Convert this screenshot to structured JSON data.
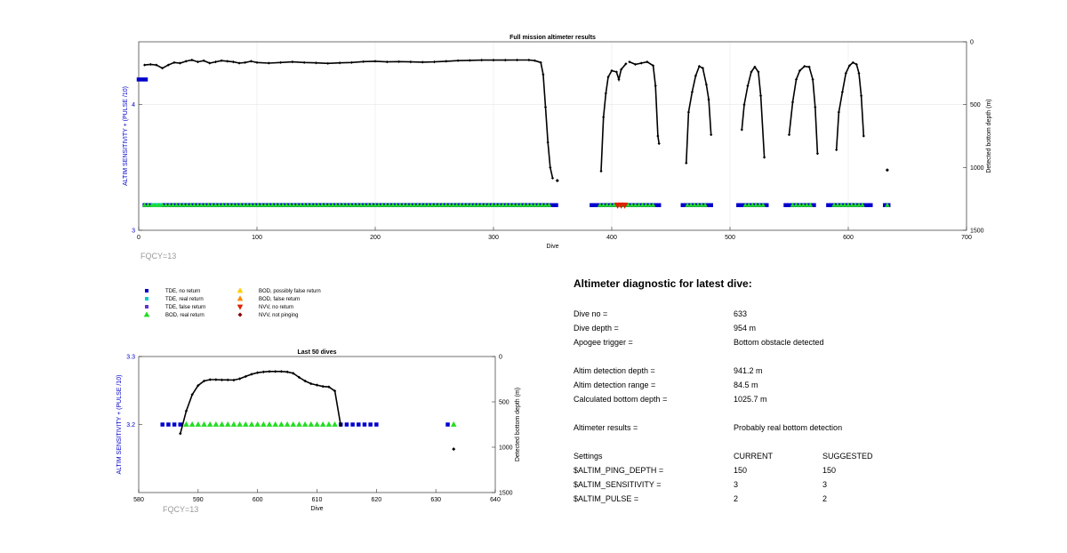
{
  "colors": {
    "tde_no_return": "#0000cc",
    "tde_real_return": "#00cccc",
    "tde_false_return": "#6633cc",
    "bod_real_return": "#22dd22",
    "bod_possibly_false": "#ffcc00",
    "bod_false_return": "#ff8800",
    "nvv_no_return": "#dd2200",
    "nvv_not_pinging": "#880000",
    "depth_line": "#000000",
    "left_axis_label": "#0000cc",
    "fqcy_text": "#999999"
  },
  "chart_data": [
    {
      "type": "scatter",
      "title": "Full mission altimeter results",
      "xlabel": "Dive",
      "ylabel_left": "ALTIM SENSITIVITY + (PULSE /10)",
      "ylabel_right": "Detected bottom depth (m)",
      "xlim": [
        0,
        700
      ],
      "ylim_left": [
        3,
        4.5
      ],
      "ylim_right": [
        0,
        1500
      ],
      "right_axis_reversed": true,
      "x_ticks": [
        "0",
        "100",
        "200",
        "300",
        "400",
        "500",
        "600",
        "700"
      ],
      "y_left_ticks": [
        "3",
        "4"
      ],
      "y_right_ticks": [
        "0",
        "500",
        "1000",
        "1500"
      ],
      "annotation": "FQCY=13",
      "markers": [
        {
          "type": "tde_no_return",
          "x0": 0,
          "x1": 6,
          "y": 4.2
        },
        {
          "type": "tde_no_return",
          "x0": 5,
          "x1": 349,
          "y": 3.2
        },
        {
          "type": "bod_real_return",
          "x0": 5,
          "x1": 347,
          "y": 3.2
        },
        {
          "type": "tde_real_return",
          "x0": 12,
          "x1": 20,
          "y": 3.2
        },
        {
          "type": "tde_no_return",
          "x0": 350,
          "x1": 353,
          "y": 3.2
        },
        {
          "type": "tde_no_return",
          "x0": 383,
          "x1": 440,
          "y": 3.2
        },
        {
          "type": "bod_real_return",
          "x0": 390,
          "x1": 435,
          "y": 3.2
        },
        {
          "type": "nvv_no_return",
          "x0": 405,
          "x1": 412,
          "y": 3.2
        },
        {
          "type": "tde_no_return",
          "x0": 460,
          "x1": 486,
          "y": 3.2
        },
        {
          "type": "bod_real_return",
          "x0": 464,
          "x1": 480,
          "y": 3.2
        },
        {
          "type": "tde_no_return",
          "x0": 507,
          "x1": 532,
          "y": 3.2
        },
        {
          "type": "bod_real_return",
          "x0": 513,
          "x1": 528,
          "y": 3.2
        },
        {
          "type": "tde_no_return",
          "x0": 547,
          "x1": 572,
          "y": 3.2
        },
        {
          "type": "bod_real_return",
          "x0": 553,
          "x1": 568,
          "y": 3.2
        },
        {
          "type": "tde_no_return",
          "x0": 583,
          "x1": 621,
          "y": 3.2
        },
        {
          "type": "bod_real_return",
          "x0": 588,
          "x1": 613,
          "y": 3.2
        },
        {
          "type": "tde_no_return",
          "x0": 631,
          "x1": 634,
          "y": 3.2
        },
        {
          "type": "bod_real_return",
          "x0": 633,
          "x1": 633,
          "y": 3.2
        }
      ],
      "depth_segments": [
        [
          [
            5,
            185
          ],
          [
            10,
            180
          ],
          [
            15,
            185
          ],
          [
            20,
            210
          ],
          [
            25,
            185
          ],
          [
            30,
            165
          ],
          [
            35,
            170
          ],
          [
            40,
            155
          ],
          [
            45,
            145
          ],
          [
            50,
            160
          ],
          [
            55,
            150
          ],
          [
            60,
            170
          ],
          [
            65,
            160
          ],
          [
            70,
            150
          ],
          [
            75,
            155
          ],
          [
            80,
            160
          ],
          [
            85,
            170
          ],
          [
            90,
            165
          ],
          [
            95,
            155
          ],
          [
            100,
            165
          ],
          [
            110,
            170
          ],
          [
            120,
            165
          ],
          [
            130,
            160
          ],
          [
            140,
            165
          ],
          [
            150,
            168
          ],
          [
            160,
            172
          ],
          [
            170,
            168
          ],
          [
            180,
            165
          ],
          [
            190,
            158
          ],
          [
            200,
            155
          ],
          [
            210,
            160
          ],
          [
            220,
            158
          ],
          [
            230,
            160
          ],
          [
            240,
            162
          ],
          [
            250,
            160
          ],
          [
            260,
            155
          ],
          [
            270,
            150
          ],
          [
            280,
            148
          ],
          [
            290,
            146
          ],
          [
            300,
            146
          ],
          [
            310,
            146
          ],
          [
            320,
            145
          ],
          [
            330,
            145
          ],
          [
            335,
            150
          ],
          [
            340,
            165
          ],
          [
            342,
            260
          ],
          [
            344,
            520
          ],
          [
            346,
            800
          ],
          [
            348,
            1000
          ],
          [
            350,
            1085
          ]
        ],
        [
          [
            391,
            1030
          ],
          [
            393,
            600
          ],
          [
            395,
            410
          ],
          [
            397,
            280
          ],
          [
            400,
            230
          ],
          [
            404,
            240
          ],
          [
            406,
            300
          ],
          [
            408,
            220
          ],
          [
            412,
            175
          ]
        ],
        [
          [
            415,
            160
          ],
          [
            420,
            180
          ],
          [
            425,
            170
          ],
          [
            430,
            160
          ],
          [
            435,
            190
          ],
          [
            437,
            350
          ],
          [
            439,
            750
          ],
          [
            440,
            810
          ]
        ],
        [
          [
            463,
            965
          ],
          [
            465,
            560
          ],
          [
            468,
            400
          ],
          [
            471,
            270
          ],
          [
            474,
            195
          ],
          [
            477,
            210
          ],
          [
            480,
            340
          ],
          [
            482,
            460
          ],
          [
            484,
            740
          ]
        ],
        [
          [
            510,
            700
          ],
          [
            512,
            500
          ],
          [
            515,
            350
          ],
          [
            518,
            240
          ],
          [
            521,
            200
          ],
          [
            524,
            240
          ],
          [
            526,
            430
          ],
          [
            529,
            920
          ]
        ],
        [
          [
            550,
            740
          ],
          [
            553,
            480
          ],
          [
            556,
            300
          ],
          [
            559,
            230
          ],
          [
            563,
            195
          ],
          [
            567,
            200
          ],
          [
            570,
            300
          ],
          [
            572,
            520
          ],
          [
            574,
            890
          ]
        ],
        [
          [
            590,
            860
          ],
          [
            592,
            560
          ],
          [
            595,
            400
          ],
          [
            598,
            250
          ],
          [
            601,
            190
          ],
          [
            604,
            165
          ],
          [
            607,
            180
          ],
          [
            609,
            250
          ],
          [
            611,
            430
          ],
          [
            613,
            750
          ]
        ]
      ],
      "depth_points": [
        [
          354,
          1105
        ],
        [
          633,
          1021
        ]
      ]
    },
    {
      "type": "scatter",
      "title": "Last 50 dives",
      "xlabel": "Dive",
      "ylabel_left": "ALTIM SENSITIVITY + (PULSE /10)",
      "ylabel_right": "Detected bottom depth (m)",
      "xlim": [
        580,
        640
      ],
      "ylim_left": [
        3.1,
        3.3
      ],
      "ylim_right": [
        0,
        1500
      ],
      "right_axis_reversed": true,
      "x_ticks": [
        "580",
        "590",
        "600",
        "610",
        "620",
        "630",
        "640"
      ],
      "y_left_ticks": [
        "3.2",
        "3.3"
      ],
      "y_right_ticks": [
        "0",
        "500",
        "1000",
        "1500"
      ],
      "annotation": "FQCY=13",
      "tde_no_return_x": [
        584,
        585,
        586,
        587,
        614,
        615,
        616,
        617,
        618,
        619,
        620,
        632
      ],
      "bod_real_return_x": [
        588,
        589,
        590,
        591,
        592,
        593,
        594,
        595,
        596,
        597,
        598,
        599,
        600,
        601,
        602,
        603,
        604,
        605,
        606,
        607,
        608,
        609,
        610,
        611,
        612,
        613,
        633
      ],
      "depth_line": [
        [
          587,
          850
        ],
        [
          588,
          600
        ],
        [
          589,
          420
        ],
        [
          590,
          320
        ],
        [
          591,
          270
        ],
        [
          592,
          255
        ],
        [
          593,
          255
        ],
        [
          594,
          258
        ],
        [
          595,
          258
        ],
        [
          596,
          260
        ],
        [
          597,
          245
        ],
        [
          598,
          220
        ],
        [
          599,
          195
        ],
        [
          600,
          178
        ],
        [
          601,
          170
        ],
        [
          602,
          165
        ],
        [
          603,
          165
        ],
        [
          604,
          165
        ],
        [
          605,
          170
        ],
        [
          606,
          185
        ],
        [
          607,
          230
        ],
        [
          608,
          270
        ],
        [
          609,
          300
        ],
        [
          610,
          315
        ],
        [
          611,
          330
        ],
        [
          612,
          335
        ],
        [
          613,
          380
        ],
        [
          614,
          760
        ]
      ],
      "depth_points": [
        [
          633,
          1021
        ]
      ]
    }
  ],
  "legend": [
    {
      "key": "tde_no_return",
      "shape": "square",
      "label": "TDE, no return"
    },
    {
      "key": "tde_real_return",
      "shape": "square",
      "label": "TDE, real return"
    },
    {
      "key": "tde_false_return",
      "shape": "square",
      "label": "TDE, false return"
    },
    {
      "key": "bod_real_return",
      "shape": "triangle-up",
      "label": "BOD, real return"
    },
    {
      "key": "bod_possibly_false",
      "shape": "triangle-up",
      "label": "BOD, possibly false return"
    },
    {
      "key": "bod_false_return",
      "shape": "triangle-up",
      "label": "BOD, false return"
    },
    {
      "key": "nvv_no_return",
      "shape": "triangle-down",
      "label": "NVV, no return"
    },
    {
      "key": "nvv_not_pinging",
      "shape": "diamond",
      "label": "NVV, not pinging"
    }
  ],
  "diagnostic": {
    "title": "Altimeter diagnostic for latest dive:",
    "rows": [
      {
        "label": "Dive no =",
        "value": "633"
      },
      {
        "label": "Dive depth =",
        "value": "954 m"
      },
      {
        "label": "Apogee trigger =",
        "value": "Bottom obstacle detected"
      },
      {
        "label": "Altim detection depth =",
        "value": "941.2 m"
      },
      {
        "label": "Altim detection range =",
        "value": "84.5 m"
      },
      {
        "label": "Calculated bottom depth =",
        "value": "1025.7 m"
      },
      {
        "label": "Altimeter results =",
        "value": "Probably real bottom detection"
      }
    ],
    "settings": {
      "header": {
        "label": "Settings",
        "current": "CURRENT",
        "suggested": "SUGGESTED"
      },
      "rows": [
        {
          "label": "$ALTIM_PING_DEPTH =",
          "current": "150",
          "suggested": "150"
        },
        {
          "label": "$ALTIM_SENSITIVITY =",
          "current": "3",
          "suggested": "3"
        },
        {
          "label": "$ALTIM_PULSE =",
          "current": "2",
          "suggested": "2"
        }
      ]
    }
  }
}
